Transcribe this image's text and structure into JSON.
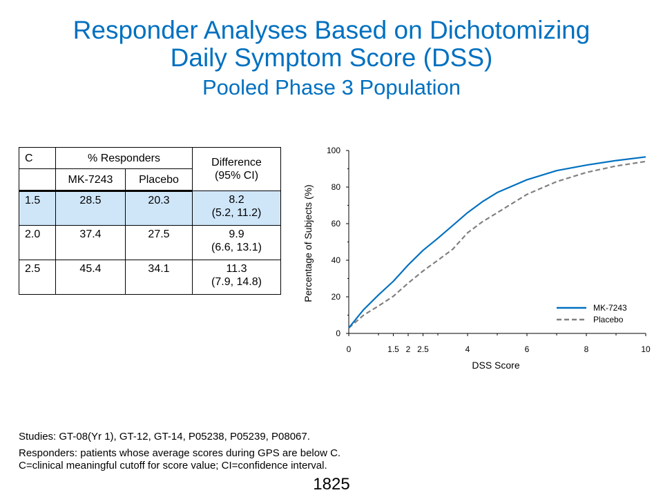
{
  "title": {
    "line1": "Responder Analyses Based on Dichotomizing",
    "line2": "Daily Symptom Score (DSS)",
    "subtitle": "Pooled Phase 3 Population"
  },
  "table": {
    "headers": {
      "c": "C",
      "responders": "% Responders",
      "difference_line1": "Difference",
      "difference_line2": "(95% CI)",
      "mk": "MK-7243",
      "placebo": "Placebo"
    },
    "rows": [
      {
        "c": "1.5",
        "mk": "28.5",
        "placebo": "20.3",
        "diff": "8.2",
        "ci": "(5.2, 11.2)"
      },
      {
        "c": "2.0",
        "mk": "37.4",
        "placebo": "27.5",
        "diff": "9.9",
        "ci": "(6.6, 13.1)"
      },
      {
        "c": "2.5",
        "mk": "45.4",
        "placebo": "34.1",
        "diff": "11.3",
        "ci": "(7.9, 14.8)"
      }
    ],
    "highlight_color": "#cfe6f9"
  },
  "chart_data": {
    "type": "line",
    "xlabel": "DSS Score",
    "ylabel": "Percentage of Subjects (%)",
    "xlim": [
      0,
      10
    ],
    "ylim": [
      0,
      100
    ],
    "x_ticks": [
      "0",
      "1.5",
      "2",
      "2.5",
      "4",
      "6",
      "8",
      "10"
    ],
    "x_tick_values": [
      0,
      1.5,
      2,
      2.5,
      4,
      6,
      8,
      10
    ],
    "y_ticks": [
      "0",
      "20",
      "40",
      "60",
      "80",
      "100"
    ],
    "y_tick_values": [
      0,
      20,
      40,
      60,
      80,
      100
    ],
    "legend_position": "bottom-right",
    "series": [
      {
        "name": "MK-7243",
        "color": "#0070c0",
        "style": "solid",
        "x": [
          0,
          0.5,
          1,
          1.5,
          2,
          2.5,
          3,
          3.5,
          4,
          4.5,
          5,
          6,
          7,
          8,
          9,
          10
        ],
        "y": [
          3,
          13,
          21,
          28.5,
          37.4,
          45.4,
          52,
          59,
          66,
          72,
          77,
          84,
          89,
          92,
          94.5,
          96.5
        ]
      },
      {
        "name": "Placebo",
        "color": "#808080",
        "style": "dashed",
        "x": [
          0,
          0.5,
          1,
          1.5,
          2,
          2.5,
          3,
          3.5,
          4,
          4.5,
          5,
          6,
          7,
          8,
          9,
          10
        ],
        "y": [
          3,
          10,
          15,
          20.3,
          27.5,
          34.1,
          40,
          46,
          55,
          61,
          66,
          76,
          83,
          88,
          91.5,
          94
        ]
      }
    ]
  },
  "notes": {
    "studies": "Studies: GT-08(Yr 1), GT-12, GT-14, P05238, P05239, P08067.",
    "responders": "Responders: patients whose average scores during GPS are below C.",
    "definitions": "C=clinical meaningful cutoff for score value; CI=confidence interval."
  },
  "page_number": "1825"
}
